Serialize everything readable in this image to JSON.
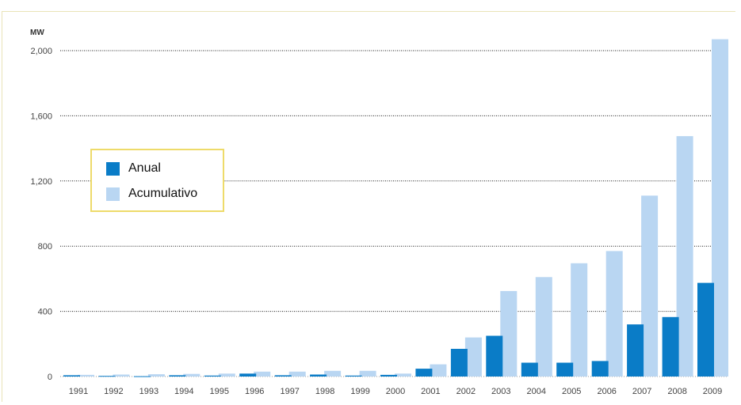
{
  "chart_data": {
    "type": "bar",
    "ylabel": "MW",
    "ylim": [
      0,
      2100
    ],
    "yticks": [
      0,
      400,
      800,
      1200,
      1600,
      2000
    ],
    "ytick_labels": [
      "0",
      "400",
      "800",
      "1,200",
      "1,600",
      "2,000"
    ],
    "categories": [
      "1991",
      "1992",
      "1993",
      "1994",
      "1995",
      "1996",
      "1997",
      "1998",
      "1999",
      "2000",
      "2001",
      "2002",
      "2003",
      "2004",
      "2005",
      "2006",
      "2007",
      "2008",
      "2009"
    ],
    "series": [
      {
        "name": "Anual",
        "color": "#0a7cc7",
        "values": [
          8,
          4,
          2,
          8,
          6,
          18,
          8,
          12,
          6,
          10,
          48,
          170,
          250,
          85,
          85,
          95,
          320,
          365,
          575
        ]
      },
      {
        "name": "Acumulativo",
        "color": "#b9d6f2",
        "values": [
          10,
          12,
          14,
          16,
          18,
          30,
          30,
          35,
          35,
          18,
          75,
          240,
          525,
          610,
          695,
          770,
          1110,
          1475,
          2070
        ]
      }
    ],
    "grid": true,
    "legend_position": "left"
  }
}
